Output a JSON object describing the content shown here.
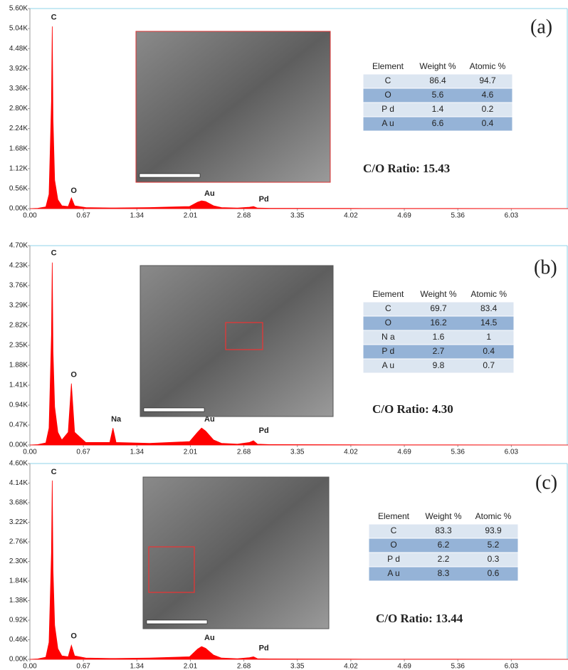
{
  "chart_data": [
    {
      "type": "area",
      "color": "#ff0000",
      "panel_label": "(a)",
      "ratio_label": "C/O Ratio: 15.43",
      "xlim": [
        0,
        6.74
      ],
      "xticks": [
        {
          "value": 0,
          "label": "0.00"
        },
        0.67,
        1.34,
        2.01,
        2.68,
        3.35,
        4.02,
        4.69,
        5.36,
        6.03
      ],
      "ylim": [
        0,
        5600
      ],
      "yticks": [
        {
          "value": 0,
          "label": "0.00K"
        },
        {
          "value": 560,
          "label": "0.56K"
        },
        {
          "value": 1120,
          "label": "1.12K"
        },
        {
          "value": 1680,
          "label": "1.68K"
        },
        {
          "value": 2240,
          "label": "2.24K"
        },
        {
          "value": 2800,
          "label": "2.80K"
        },
        {
          "value": 3360,
          "label": "3.36K"
        },
        {
          "value": 3920,
          "label": "3.92K"
        },
        {
          "value": 4480,
          "label": "4.48K"
        },
        {
          "value": 5040,
          "label": "5.04K"
        },
        {
          "value": 5600,
          "label": "5.60K"
        }
      ],
      "x": [
        0,
        0.1,
        0.2,
        0.24,
        0.27,
        0.28,
        0.29,
        0.31,
        0.35,
        0.4,
        0.48,
        0.52,
        0.56,
        0.7,
        1.0,
        1.04,
        1.08,
        1.5,
        2.0,
        2.1,
        2.15,
        2.2,
        2.3,
        2.4,
        2.6,
        2.75,
        2.8,
        2.85,
        3.0,
        4.0,
        5.0,
        6.0,
        6.74
      ],
      "values": [
        0,
        10,
        50,
        400,
        3000,
        5100,
        2500,
        800,
        250,
        80,
        60,
        300,
        80,
        30,
        20,
        20,
        20,
        30,
        60,
        180,
        220,
        200,
        80,
        30,
        15,
        40,
        60,
        15,
        10,
        5,
        3,
        2,
        0
      ],
      "annotations": [
        {
          "text": "C",
          "x": 0.3,
          "y": 5350
        },
        {
          "text": "O",
          "x": 0.55,
          "y": 500
        },
        {
          "text": "Au",
          "x": 2.25,
          "y": 420
        },
        {
          "text": "Pd",
          "x": 2.93,
          "y": 260
        }
      ],
      "table": {
        "columns": [
          "Element",
          "Weight %",
          "Atomic %"
        ],
        "rows": [
          [
            "C",
            86.4,
            94.7
          ],
          [
            "O",
            5.6,
            4.6
          ],
          [
            "P d",
            1.4,
            0.2
          ],
          [
            "A u",
            6.6,
            0.4
          ]
        ]
      }
    },
    {
      "type": "area",
      "color": "#ff0000",
      "panel_label": "(b)",
      "ratio_label": "C/O Ratio: 4.30",
      "xlim": [
        0,
        6.74
      ],
      "xticks": [
        {
          "value": 0,
          "label": "0.00"
        },
        0.67,
        1.34,
        2.01,
        2.68,
        3.35,
        4.02,
        4.69,
        5.36,
        6.03
      ],
      "ylim": [
        0,
        4700
      ],
      "yticks": [
        {
          "value": 0,
          "label": "0.00K"
        },
        {
          "value": 470,
          "label": "0.47K"
        },
        {
          "value": 940,
          "label": "0.94K"
        },
        {
          "value": 1410,
          "label": "1.41K"
        },
        {
          "value": 1880,
          "label": "1.88K"
        },
        {
          "value": 2350,
          "label": "2.35K"
        },
        {
          "value": 2820,
          "label": "2.82K"
        },
        {
          "value": 3290,
          "label": "3.29K"
        },
        {
          "value": 3760,
          "label": "3.76K"
        },
        {
          "value": 4230,
          "label": "4.23K"
        },
        {
          "value": 4700,
          "label": "4.70K"
        }
      ],
      "x": [
        0,
        0.1,
        0.2,
        0.24,
        0.27,
        0.28,
        0.29,
        0.31,
        0.35,
        0.4,
        0.48,
        0.52,
        0.56,
        0.7,
        1.0,
        1.04,
        1.08,
        1.5,
        2.0,
        2.1,
        2.15,
        2.2,
        2.3,
        2.4,
        2.6,
        2.75,
        2.8,
        2.85,
        3.0,
        4.0,
        5.0,
        6.0,
        6.74
      ],
      "values": [
        0,
        10,
        50,
        400,
        2600,
        4300,
        2200,
        900,
        300,
        120,
        300,
        1450,
        300,
        60,
        60,
        400,
        60,
        40,
        80,
        300,
        400,
        330,
        120,
        40,
        20,
        60,
        100,
        20,
        10,
        5,
        3,
        2,
        0
      ],
      "annotations": [
        {
          "text": "C",
          "x": 0.3,
          "y": 4520
        },
        {
          "text": "O",
          "x": 0.55,
          "y": 1650
        },
        {
          "text": "Na",
          "x": 1.08,
          "y": 600
        },
        {
          "text": "Au",
          "x": 2.25,
          "y": 600
        },
        {
          "text": "Pd",
          "x": 2.93,
          "y": 330
        }
      ],
      "table": {
        "columns": [
          "Element",
          "Weight %",
          "Atomic %"
        ],
        "rows": [
          [
            "C",
            69.7,
            83.4
          ],
          [
            "O",
            16.2,
            14.5
          ],
          [
            "N a",
            1.6,
            1.0
          ],
          [
            "P d",
            2.7,
            0.4
          ],
          [
            "A u",
            9.8,
            0.7
          ]
        ]
      }
    },
    {
      "type": "area",
      "color": "#ff0000",
      "panel_label": "(c)",
      "ratio_label": "C/O Ratio: 13.44",
      "xlim": [
        0,
        6.74
      ],
      "xticks": [
        {
          "value": 0,
          "label": "0.00"
        },
        0.67,
        1.34,
        2.01,
        2.68,
        3.35,
        4.02,
        4.69,
        5.36,
        6.03
      ],
      "ylim": [
        0,
        4600
      ],
      "yticks": [
        {
          "value": 0,
          "label": "0.00K"
        },
        {
          "value": 460,
          "label": "0.46K"
        },
        {
          "value": 920,
          "label": "0.92K"
        },
        {
          "value": 1380,
          "label": "1.38K"
        },
        {
          "value": 1840,
          "label": "1.84K"
        },
        {
          "value": 2300,
          "label": "2.30K"
        },
        {
          "value": 2760,
          "label": "2.76K"
        },
        {
          "value": 3220,
          "label": "3.22K"
        },
        {
          "value": 3680,
          "label": "3.68K"
        },
        {
          "value": 4140,
          "label": "4.14K"
        },
        {
          "value": 4600,
          "label": "4.60K"
        }
      ],
      "x": [
        0,
        0.1,
        0.2,
        0.24,
        0.27,
        0.28,
        0.29,
        0.31,
        0.35,
        0.4,
        0.48,
        0.52,
        0.56,
        0.7,
        1.0,
        1.04,
        1.08,
        1.5,
        2.0,
        2.1,
        2.15,
        2.2,
        2.3,
        2.4,
        2.6,
        2.75,
        2.8,
        2.85,
        3.0,
        4.0,
        5.0,
        6.0,
        6.74
      ],
      "values": [
        0,
        10,
        50,
        400,
        2500,
        4200,
        2100,
        800,
        250,
        80,
        60,
        330,
        80,
        30,
        20,
        20,
        20,
        30,
        60,
        240,
        300,
        260,
        100,
        30,
        15,
        40,
        60,
        15,
        10,
        5,
        3,
        2,
        0
      ],
      "annotations": [
        {
          "text": "C",
          "x": 0.3,
          "y": 4400
        },
        {
          "text": "O",
          "x": 0.55,
          "y": 540
        },
        {
          "text": "Au",
          "x": 2.25,
          "y": 500
        },
        {
          "text": "Pd",
          "x": 2.93,
          "y": 260
        }
      ],
      "table": {
        "columns": [
          "Element",
          "Weight %",
          "Atomic %"
        ],
        "rows": [
          [
            "C",
            83.3,
            93.9
          ],
          [
            "O",
            6.2,
            5.2
          ],
          [
            "P d",
            2.2,
            0.3
          ],
          [
            "A u",
            8.3,
            0.6
          ]
        ]
      }
    }
  ]
}
